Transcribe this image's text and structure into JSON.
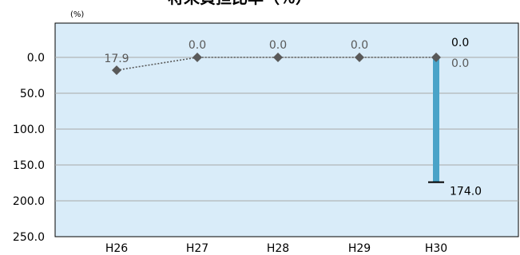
{
  "chart_data": {
    "type": "line",
    "title": "将来負担比率（％）",
    "unit_label": "(%)",
    "y_inverted": true,
    "ylim": [
      0,
      250
    ],
    "y_ticks": [
      "0.0",
      "50.0",
      "100.0",
      "150.0",
      "200.0",
      "250.0"
    ],
    "y_tick_values": [
      0,
      50,
      100,
      150,
      200,
      250
    ],
    "categories": [
      "H26",
      "H27",
      "H28",
      "H29",
      "H30"
    ],
    "series": [
      {
        "name": "",
        "type": "line",
        "values": [
          17.9,
          0.0,
          0.0,
          0.0,
          0.0
        ],
        "labels": [
          "17.9",
          "0.0",
          "0.0",
          "0.0",
          "0.0"
        ]
      }
    ],
    "range_bar": {
      "category": "H30",
      "low": 0.0,
      "high": 174.0,
      "low_label": "0.0",
      "high_label": "174.0"
    },
    "grid": true,
    "colors": {
      "plot_bg": "#d9ecf9",
      "grid": "#a8a8a8",
      "line": "#595959",
      "marker": "#595959",
      "bar": "#4aa3c8",
      "axis": "#000000"
    }
  }
}
